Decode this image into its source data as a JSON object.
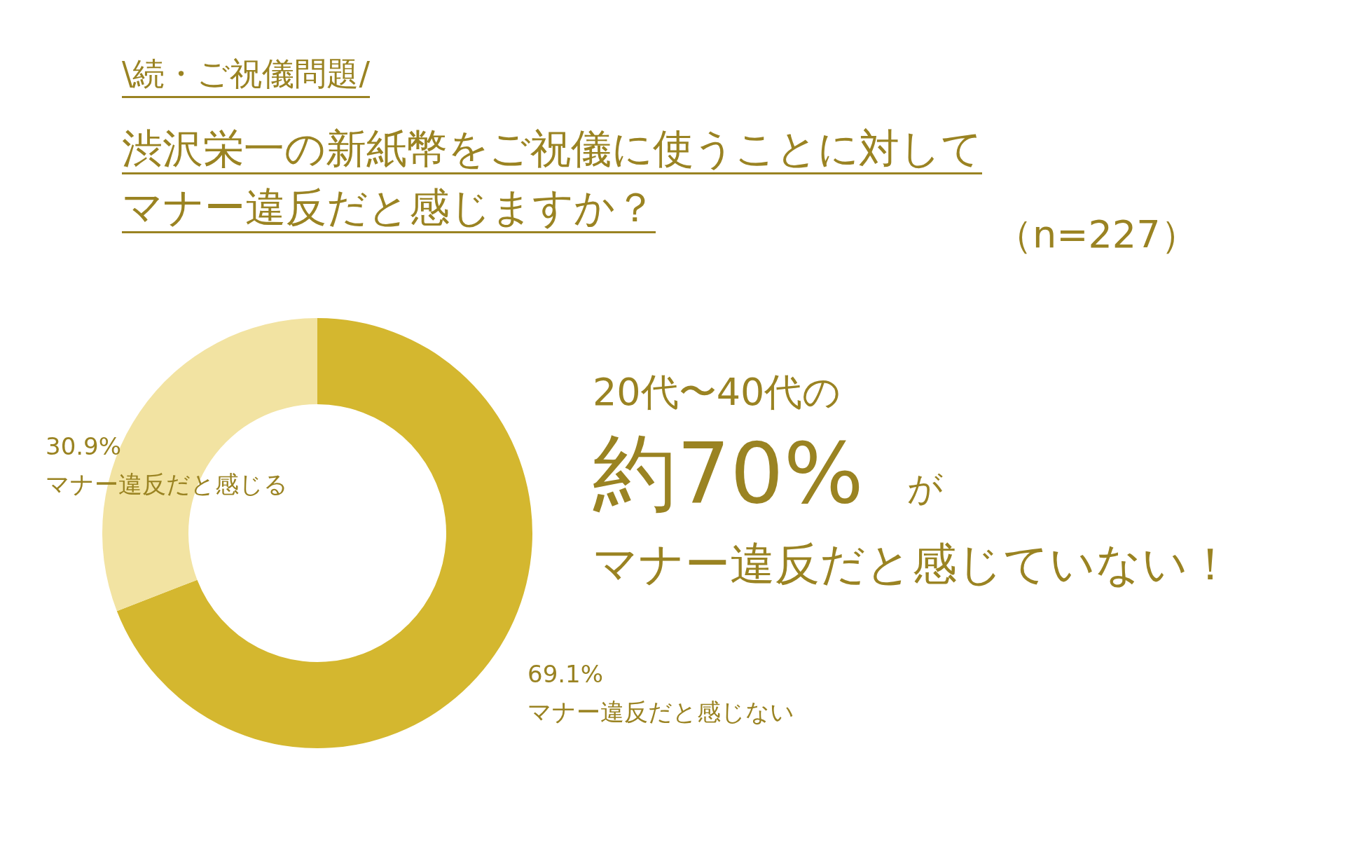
{
  "chart_data": {
    "type": "donut",
    "subtitle": "\\続・ご祝儀問題/",
    "title": "渋沢栄一の新紙幣をご祝儀に使うことに対してマナー違反だと感じますか？",
    "categories": [
      "マナー違反だと感じない",
      "マナー違反だと感じる"
    ],
    "values": [
      69.1,
      30.9
    ],
    "colors": [
      "#d4b72f",
      "#f2e3a2"
    ],
    "value_labels": [
      "69.1%",
      "30.9%"
    ],
    "annotations": [
      "（n=227）",
      "20代〜40代の",
      "約70%",
      "が",
      "マナー違反だと感じていない！"
    ]
  }
}
